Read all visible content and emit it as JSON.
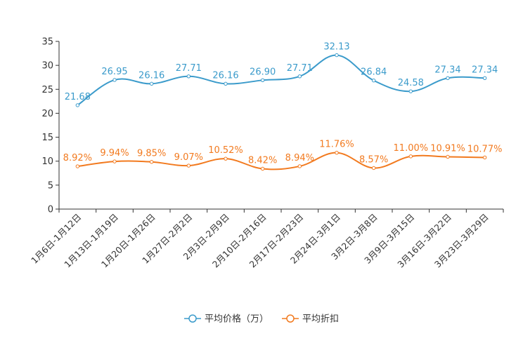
{
  "chart_data": {
    "type": "line",
    "title": "",
    "xlabel": "",
    "ylabel": "",
    "ylim": [
      0,
      35
    ],
    "yticks": [
      0,
      5,
      10,
      15,
      20,
      25,
      30,
      35
    ],
    "grid": false,
    "legend_position": "bottom-center",
    "categories": [
      "1月6日-1月12日",
      "1月13日-1月19日",
      "1月20日-1月26日",
      "1月27日-2月2日",
      "2月3日-2月9日",
      "2月10日-2月16日",
      "2月17日-2月23日",
      "2月24日-3月1日",
      "3月2日-3月8日",
      "3月9日-3月15日",
      "3月16日-3月22日",
      "3月23日-3月29日"
    ],
    "series": [
      {
        "name": "平均价格（万）",
        "color": "#3b9bcb",
        "values": [
          21.68,
          26.95,
          26.16,
          27.71,
          26.16,
          26.9,
          27.71,
          32.13,
          26.84,
          24.58,
          27.34,
          27.34
        ],
        "labels": [
          "21.68",
          "26.95",
          "26.16",
          "27.71",
          "26.16",
          "26.90",
          "27.71",
          "32.13",
          "26.84",
          "24.58",
          "27.34",
          "27.34"
        ]
      },
      {
        "name": "平均折扣",
        "color": "#f27a1f",
        "values": [
          8.92,
          9.94,
          9.85,
          9.07,
          10.52,
          8.42,
          8.94,
          11.76,
          8.57,
          11.0,
          10.91,
          10.77
        ],
        "labels": [
          "8.92%",
          "9.94%",
          "9.85%",
          "9.07%",
          "10.52%",
          "8.42%",
          "8.94%",
          "11.76%",
          "8.57%",
          "11.00%",
          "10.91%",
          "10.77%"
        ]
      }
    ]
  }
}
